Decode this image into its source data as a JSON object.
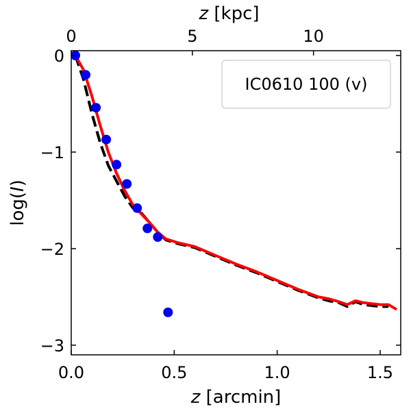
{
  "chart_data": {
    "type": "scatter",
    "legend": {
      "label": "IC0610 100 (v)",
      "placement": "top-right"
    },
    "x_axis": {
      "label_var": "z",
      "label_unit": " [arcmin]",
      "range": [
        0.0,
        1.6
      ],
      "ticks": [
        0.0,
        0.5,
        1.0,
        1.5
      ],
      "tick_labels": [
        "0.0",
        "0.5",
        "1.0",
        "1.5"
      ]
    },
    "x_top_axis": {
      "label_var": "z",
      "label_unit": " [kpc]",
      "range_kpc": [
        0,
        13.6
      ],
      "ticks": [
        0,
        5,
        10
      ],
      "tick_labels": [
        "0",
        "5",
        "10"
      ]
    },
    "y_axis": {
      "label_pre": "log(",
      "label_var": "I",
      "label_post": ")",
      "range": [
        -3.1,
        0.05
      ],
      "ticks": [
        0,
        -1,
        -2,
        -3
      ],
      "tick_labels": [
        "0",
        "−1",
        "−2",
        "−3"
      ]
    },
    "series": [
      {
        "name": "data",
        "kind": "points",
        "color": "#0000ee",
        "x": [
          0.02,
          0.07,
          0.12,
          0.17,
          0.22,
          0.27,
          0.32,
          0.37,
          0.42,
          0.47
        ],
        "y": [
          0.0,
          -0.2,
          -0.54,
          -0.87,
          -1.13,
          -1.33,
          -1.58,
          -1.79,
          -1.88,
          -2.66
        ]
      },
      {
        "name": "model-red",
        "kind": "line",
        "color": "#ff0000",
        "dash": "none",
        "x": [
          0.02,
          0.06,
          0.1,
          0.14,
          0.18,
          0.22,
          0.26,
          0.3,
          0.34,
          0.38,
          0.42,
          0.46,
          0.52,
          0.6,
          0.7,
          0.8,
          0.9,
          1.0,
          1.1,
          1.2,
          1.25,
          1.3,
          1.34,
          1.38,
          1.42,
          1.46,
          1.5,
          1.54,
          1.58
        ],
        "y": [
          0.0,
          -0.15,
          -0.42,
          -0.72,
          -1.0,
          -1.22,
          -1.4,
          -1.55,
          -1.64,
          -1.73,
          -1.83,
          -1.9,
          -1.94,
          -1.98,
          -2.07,
          -2.16,
          -2.24,
          -2.33,
          -2.42,
          -2.5,
          -2.52,
          -2.55,
          -2.58,
          -2.54,
          -2.56,
          -2.57,
          -2.58,
          -2.58,
          -2.63
        ]
      },
      {
        "name": "model-black",
        "kind": "line",
        "color": "#000000",
        "dash": "16,7",
        "x": [
          0.02,
          0.06,
          0.1,
          0.14,
          0.18,
          0.22,
          0.26,
          0.3,
          0.34,
          0.38,
          0.42,
          0.46,
          0.52,
          0.6,
          0.7,
          0.8,
          0.9,
          1.0,
          1.1,
          1.2,
          1.25,
          1.3,
          1.34,
          1.38,
          1.42,
          1.46,
          1.5,
          1.54
        ],
        "y": [
          0.0,
          -0.25,
          -0.6,
          -0.9,
          -1.14,
          -1.3,
          -1.46,
          -1.58,
          -1.63,
          -1.73,
          -1.83,
          -1.91,
          -1.95,
          -1.99,
          -2.08,
          -2.17,
          -2.25,
          -2.34,
          -2.43,
          -2.51,
          -2.54,
          -2.56,
          -2.6,
          -2.55,
          -2.58,
          -2.59,
          -2.6,
          -2.6
        ]
      }
    ]
  }
}
